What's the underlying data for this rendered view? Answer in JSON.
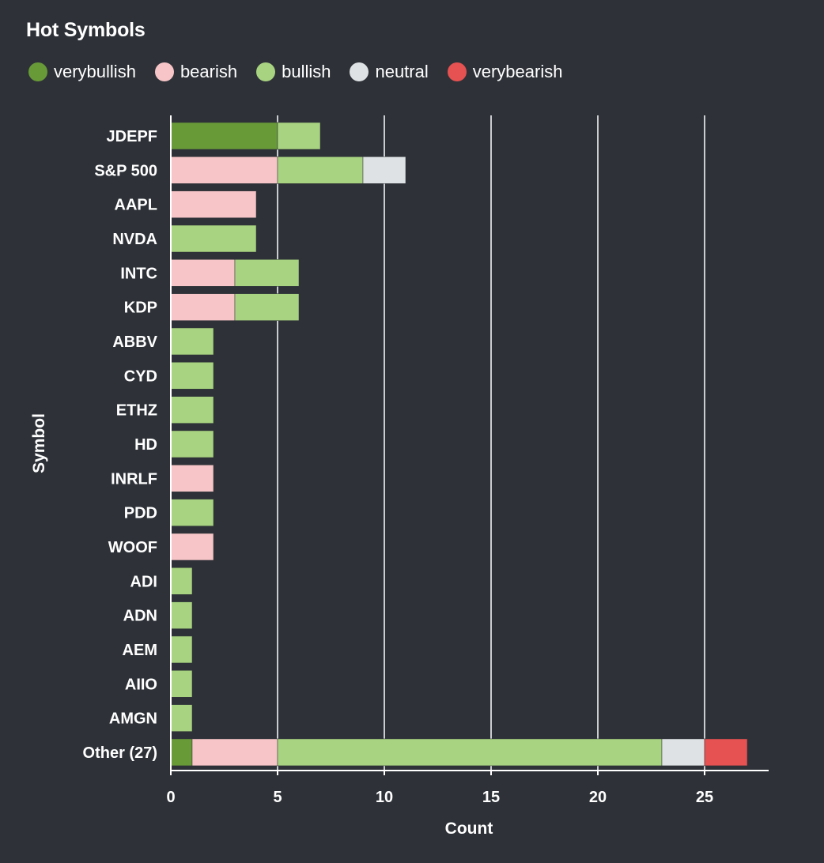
{
  "chart_data": {
    "type": "bar",
    "orientation": "horizontal",
    "stacked": true,
    "title": "Hot Symbols",
    "xlabel": "Count",
    "ylabel": "Symbol",
    "xlim": [
      0,
      28
    ],
    "xticks": [
      0,
      5,
      10,
      15,
      20,
      25
    ],
    "grid": true,
    "legend_position": "top-left",
    "categories": [
      "JDEPF",
      "S&P 500",
      "AAPL",
      "NVDA",
      "INTC",
      "KDP",
      "ABBV",
      "CYD",
      "ETHZ",
      "HD",
      "INRLF",
      "PDD",
      "WOOF",
      "ADI",
      "ADN",
      "AEM",
      "AIIO",
      "AMGN",
      "Other (27)"
    ],
    "series": [
      {
        "name": "verybullish",
        "color": "#689a38",
        "values": [
          5,
          0,
          0,
          0,
          0,
          0,
          0,
          0,
          0,
          0,
          0,
          0,
          0,
          0,
          0,
          0,
          0,
          0,
          1
        ]
      },
      {
        "name": "bearish",
        "color": "#f7c5c7",
        "values": [
          0,
          5,
          4,
          0,
          3,
          3,
          0,
          0,
          0,
          0,
          2,
          0,
          2,
          0,
          0,
          0,
          0,
          0,
          4
        ]
      },
      {
        "name": "bullish",
        "color": "#a8d380",
        "values": [
          2,
          4,
          0,
          4,
          3,
          3,
          2,
          2,
          2,
          2,
          0,
          2,
          0,
          1,
          1,
          1,
          1,
          1,
          18
        ]
      },
      {
        "name": "neutral",
        "color": "#dfe2e4",
        "values": [
          0,
          2,
          0,
          0,
          0,
          0,
          0,
          0,
          0,
          0,
          0,
          0,
          0,
          0,
          0,
          0,
          0,
          0,
          2
        ]
      },
      {
        "name": "verybearish",
        "color": "#e65151",
        "values": [
          0,
          0,
          0,
          0,
          0,
          0,
          0,
          0,
          0,
          0,
          0,
          0,
          0,
          0,
          0,
          0,
          0,
          0,
          2
        ]
      }
    ]
  }
}
